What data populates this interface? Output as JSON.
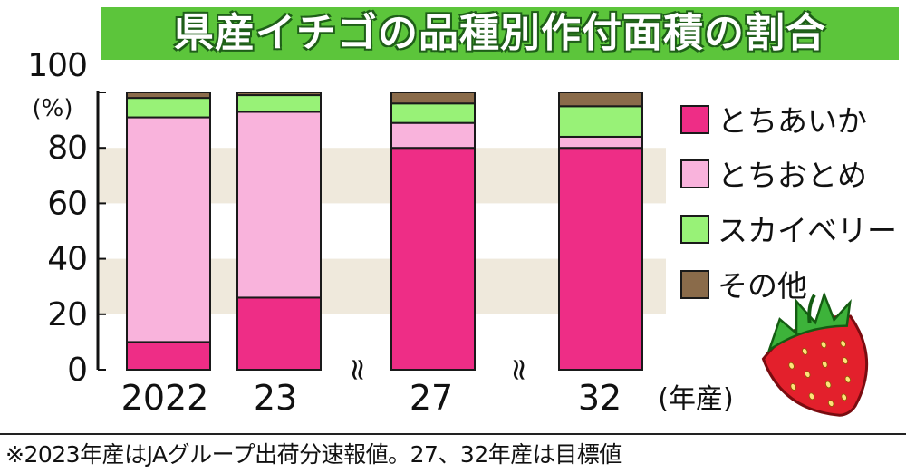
{
  "title": "県産イチゴの品種別作付面積の割合",
  "footnote": "※2023年産はJAグループ出荷分速報値。27、32年産は目標値",
  "chart_data": {
    "type": "bar",
    "stacked": true,
    "categories": [
      "2022",
      "23",
      "27",
      "32"
    ],
    "x_unit": "(年産)",
    "y_unit": "(%)",
    "ylim": [
      0,
      100
    ],
    "yticks": [
      0,
      20,
      40,
      60,
      80,
      100
    ],
    "series": [
      {
        "name": "とちあいか",
        "color": "#ee2d86",
        "values": [
          10,
          26,
          80,
          80
        ]
      },
      {
        "name": "とちおとめ",
        "color": "#f9b3dc",
        "values": [
          81,
          67,
          9,
          4
        ]
      },
      {
        "name": "スカイベリー",
        "color": "#98f277",
        "values": [
          7,
          6,
          7,
          11
        ]
      },
      {
        "name": "その他",
        "color": "#8a6b4a",
        "values": [
          2,
          1,
          4,
          5
        ]
      }
    ],
    "axis_break_marks": [
      "≈",
      "≈"
    ],
    "legend_position": "right",
    "band_color": "#efe9dc"
  }
}
